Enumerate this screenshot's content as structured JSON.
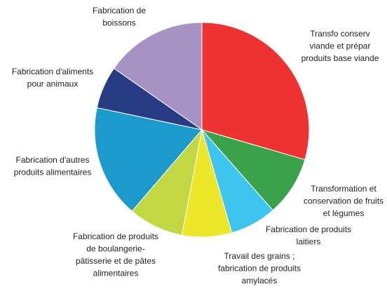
{
  "chart_data": {
    "type": "pie",
    "labels": [
      [
        "Transfo conserv",
        "viande et prépar",
        "produits base viande"
      ],
      [
        "Transformation et",
        "conservation de fruits",
        "et légumes"
      ],
      [
        "Fabrication de produits",
        "laitiers"
      ],
      [
        "Travail des grains ;",
        "fabrication de produits",
        "amylacés"
      ],
      [
        "Fabrication de produits",
        "de boulangerie-",
        "pâtisserie et de pâtes",
        "alimentaires"
      ],
      [
        "Fabrication d'autres",
        "produits alimentaires"
      ],
      [
        "Fabrication d'aliments",
        "pour animaux"
      ],
      [
        "Fabrication de",
        "boissons"
      ]
    ],
    "values": [
      29.5,
      9,
      7,
      7.5,
      8.3,
      17,
      6.4,
      15.3
    ],
    "colors": [
      "#ee3231",
      "#3aa34a",
      "#3ec5ef",
      "#ece829",
      "#c2d843",
      "#1a9bcc",
      "#283c86",
      "#a792c4"
    ]
  }
}
